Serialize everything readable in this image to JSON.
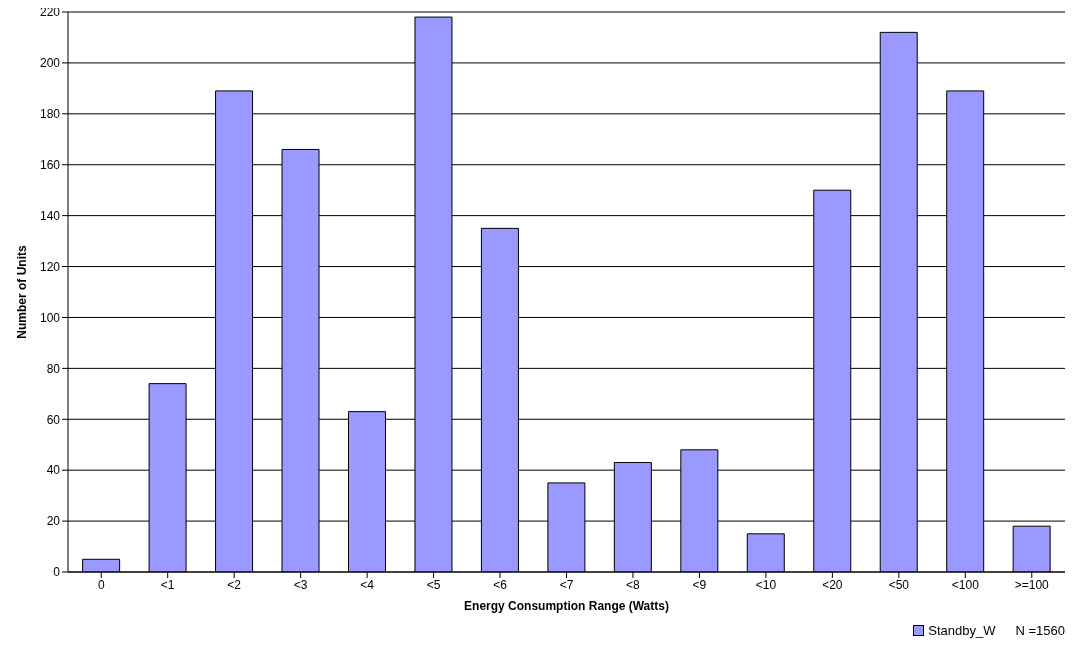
{
  "chart_data": {
    "type": "bar",
    "xlabel": "Energy Consumption Range (Watts)",
    "ylabel": "Number of Units",
    "categories": [
      "0",
      "<1",
      "<2",
      "<3",
      "<4",
      "<5",
      "<6",
      "<7",
      "<8",
      "<9",
      "<10",
      "<20",
      "<50",
      "<100",
      ">=100"
    ],
    "series": [
      {
        "name": "Standby_W",
        "color": "#9999ff",
        "values": [
          5,
          74,
          189,
          166,
          63,
          218,
          135,
          35,
          43,
          48,
          15,
          150,
          212,
          189,
          18
        ]
      }
    ],
    "ylim": [
      0,
      220
    ],
    "yticks": [
      0,
      20,
      40,
      60,
      80,
      100,
      120,
      140,
      160,
      180,
      200,
      220
    ],
    "grid": "y",
    "legend": "bottom right",
    "annotations": [
      "N =1560"
    ]
  }
}
